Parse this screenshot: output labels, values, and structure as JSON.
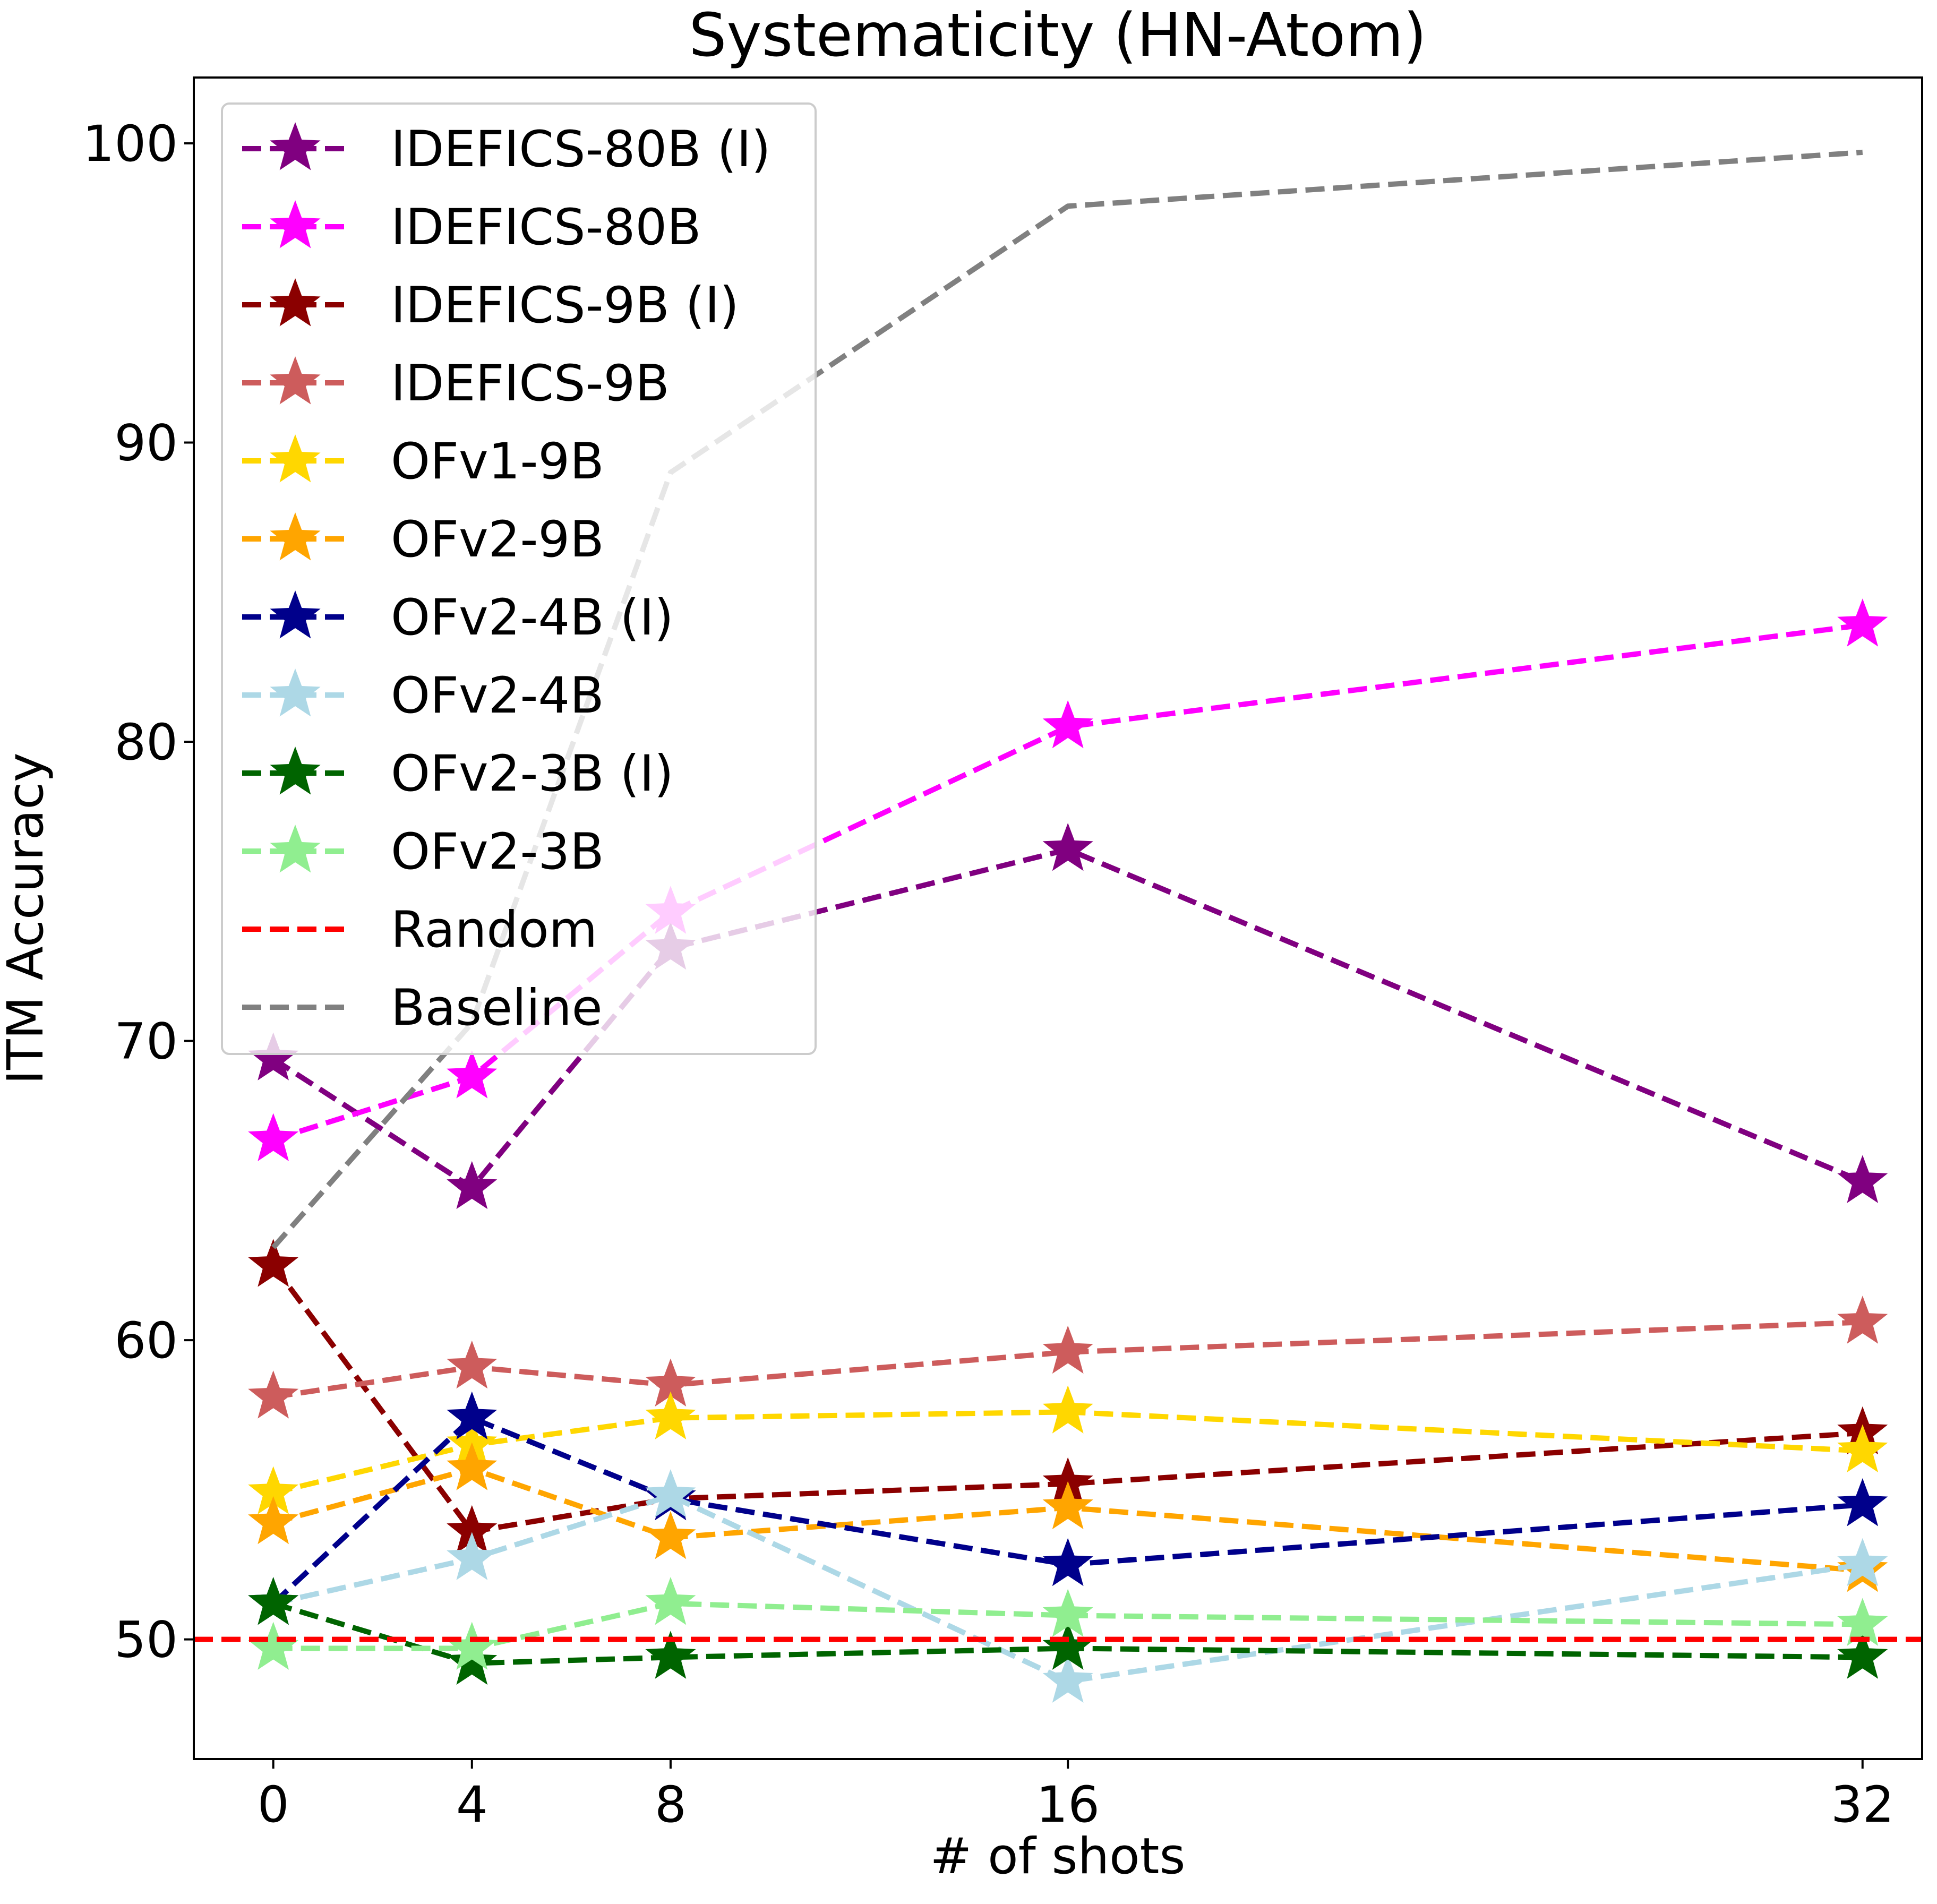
{
  "chart_data": {
    "type": "line",
    "title": "Systematicity (HN-Atom)",
    "xlabel": "# of shots",
    "ylabel": "ITM Accuracy",
    "x": [
      0,
      4,
      8,
      16,
      32
    ],
    "xticks": [
      "0",
      "4",
      "8",
      "16",
      "32"
    ],
    "yticks": [
      50,
      60,
      70,
      80,
      90,
      100
    ],
    "ylim": [
      46.0,
      102.2
    ],
    "xlim": [
      -1.6,
      33.2
    ],
    "grid": false,
    "legend_position": "top-left",
    "series": [
      {
        "name": "IDEFICS-80B (I)",
        "color": "#800080",
        "marker": "star",
        "values": [
          69.4,
          65.1,
          73.1,
          76.4,
          65.3
        ]
      },
      {
        "name": "IDEFICS-80B",
        "color": "#FF00FF",
        "marker": "star",
        "values": [
          66.7,
          68.8,
          74.3,
          80.5,
          83.9
        ]
      },
      {
        "name": "IDEFICS-9B (I)",
        "color": "#8B0000",
        "marker": "star",
        "values": [
          62.5,
          53.6,
          54.7,
          55.2,
          56.9
        ]
      },
      {
        "name": "IDEFICS-9B",
        "color": "#CD5C5C",
        "marker": "star",
        "values": [
          58.1,
          59.1,
          58.5,
          59.6,
          60.6
        ]
      },
      {
        "name": "OFv1-9B",
        "color": "#FFD700",
        "marker": "star",
        "values": [
          54.9,
          56.5,
          57.4,
          57.6,
          56.3
        ]
      },
      {
        "name": "OFv2-9B",
        "color": "#FFA500",
        "marker": "star",
        "values": [
          53.9,
          55.7,
          53.4,
          54.4,
          52.3
        ]
      },
      {
        "name": "OFv2-4B (I)",
        "color": "#00008B",
        "marker": "star",
        "values": [
          51.2,
          57.4,
          54.7,
          52.5,
          54.5
        ]
      },
      {
        "name": "OFv2-4B",
        "color": "#ADD8E6",
        "marker": "star",
        "values": [
          51.2,
          52.7,
          54.8,
          48.6,
          52.5
        ]
      },
      {
        "name": "OFv2-3B (I)",
        "color": "#006400",
        "marker": "star",
        "values": [
          51.2,
          49.2,
          49.4,
          49.7,
          49.4
        ]
      },
      {
        "name": "OFv2-3B",
        "color": "#90EE90",
        "marker": "star",
        "values": [
          49.7,
          49.7,
          51.2,
          50.8,
          50.5
        ]
      },
      {
        "name": "Random",
        "color": "#FF0000",
        "marker": "none",
        "hline": 50
      },
      {
        "name": "Baseline",
        "color": "#808080",
        "marker": "none",
        "values": [
          63.1,
          70.6,
          89.0,
          97.9,
          99.7
        ]
      }
    ]
  }
}
